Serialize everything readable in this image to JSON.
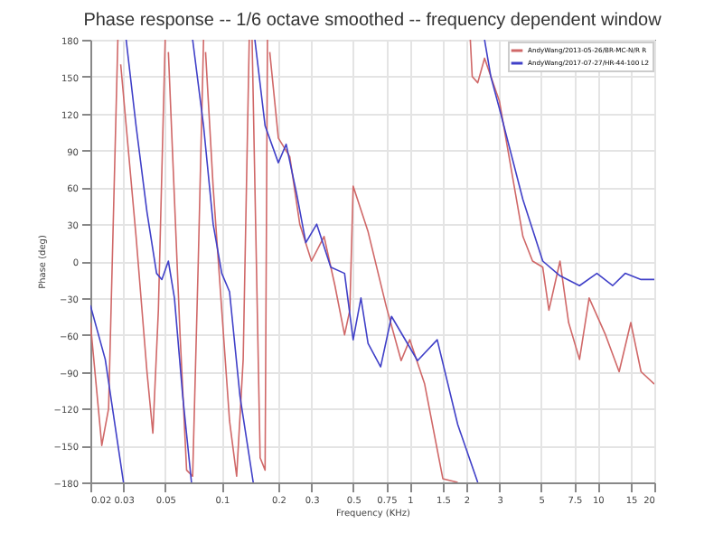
{
  "chart_data": {
    "type": "line",
    "title": "Phase response -- 1/6 octave smoothed -- frequency dependent window",
    "xlabel": "Frequency (KHz)",
    "ylabel": "Phase (deg)",
    "log": "x",
    "xlim": [
      0.02,
      20
    ],
    "xticks": [
      0.02,
      0.03,
      0.05,
      0.1,
      0.2,
      0.3,
      0.5,
      0.75,
      1,
      1.5,
      2,
      3,
      5,
      7.5,
      10,
      15,
      20
    ],
    "ylim": [
      -180,
      180
    ],
    "yticks": [
      -180,
      -150,
      -120,
      -90,
      -60,
      -30,
      0,
      30,
      60,
      90,
      120,
      150,
      180
    ],
    "grid": true,
    "legend": "top right",
    "series": [
      {
        "name": "AndyWang/2013-05-26/BR-MC-N/R R",
        "color": "#d06868",
        "x": [
          0.02,
          0.023,
          0.025,
          0.028,
          null,
          0.029,
          0.035,
          0.04,
          0.043,
          0.046,
          0.05,
          null,
          0.052,
          0.06,
          0.065,
          0.07,
          0.075,
          0.08,
          null,
          0.082,
          0.09,
          0.1,
          0.11,
          0.12,
          0.13,
          0.14,
          null,
          0.145,
          0.16,
          0.17,
          0.175,
          null,
          0.18,
          0.2,
          0.23,
          0.26,
          0.3,
          0.35,
          0.4,
          0.45,
          0.48,
          0.5,
          0.6,
          0.75,
          0.9,
          1,
          1.2,
          1.5,
          1.8,
          null,
          2.1,
          2.15,
          2.3,
          2.5,
          3,
          4,
          4.5,
          5.1,
          5.5,
          6.3,
          7,
          8,
          9,
          11,
          13,
          15,
          17,
          20
        ],
        "values": [
          -50,
          -150,
          -120,
          180,
          null,
          160,
          20,
          -90,
          -140,
          -40,
          180,
          null,
          170,
          -60,
          -170,
          -175,
          0,
          180,
          null,
          170,
          60,
          -40,
          -130,
          -175,
          -80,
          180,
          null,
          180,
          -160,
          -170,
          180,
          null,
          170,
          100,
          85,
          30,
          0,
          20,
          -20,
          -60,
          -40,
          61,
          24,
          -37,
          -81,
          -64,
          -100,
          -177,
          -180,
          null,
          180,
          150,
          145,
          165,
          130,
          20,
          0,
          -5,
          -40,
          0,
          -50,
          -80,
          -30,
          -60,
          -90,
          -50,
          -90,
          -100
        ]
      },
      {
        "name": "AndyWang/2017-07-27/HR-44-100 L2",
        "color": "#4040c8",
        "x": [
          0.02,
          0.024,
          0.03,
          null,
          0.031,
          0.035,
          0.04,
          0.045,
          0.048,
          0.052,
          0.056,
          0.062,
          0.069,
          null,
          0.07,
          0.08,
          0.09,
          0.1,
          0.11,
          0.125,
          0.147,
          null,
          0.15,
          0.17,
          0.2,
          0.22,
          0.25,
          0.28,
          0.32,
          0.38,
          0.45,
          0.5,
          0.55,
          0.6,
          0.7,
          0.8,
          1.1,
          1.4,
          1.8,
          2.3,
          null,
          2.5,
          2.7,
          3,
          4,
          5.1,
          6.3,
          8,
          9.9,
          12,
          14,
          17,
          20
        ],
        "values": [
          -36,
          -80,
          -180,
          null,
          180,
          110,
          40,
          -10,
          -15,
          0,
          -30,
          -110,
          -180,
          null,
          180,
          110,
          30,
          -10,
          -25,
          -110,
          -180,
          null,
          180,
          110,
          80,
          95,
          55,
          15,
          30,
          -5,
          -10,
          -64,
          -30,
          -67,
          -86,
          -45,
          -81,
          -64,
          -133,
          -180,
          null,
          180,
          150,
          124,
          50,
          0,
          -12,
          -20,
          -10,
          -20,
          -10,
          -15,
          -15
        ]
      }
    ]
  }
}
